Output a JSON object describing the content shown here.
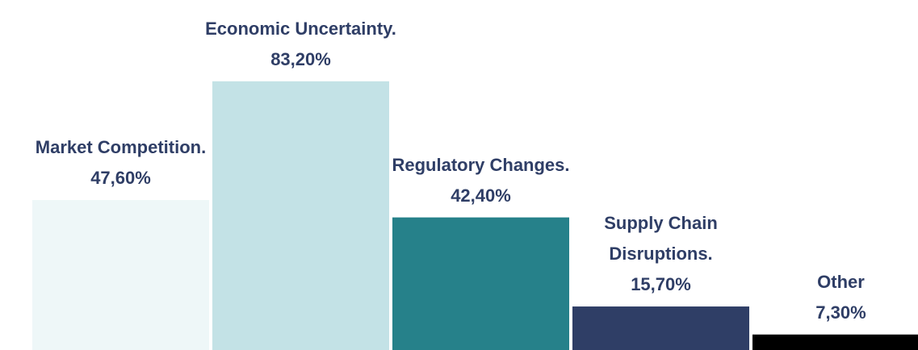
{
  "chart_data": {
    "type": "bar",
    "categories": [
      "Market Competition.",
      "Economic Uncertainty.",
      "Regulatory Changes.",
      "Supply Chain Disruptions.",
      "Other"
    ],
    "values": [
      47.6,
      83.2,
      42.4,
      15.7,
      7.3
    ],
    "value_labels": [
      "47,60%",
      "83,20%",
      "42,40%",
      "15,70%",
      "7,30%"
    ],
    "colors": [
      "#eef7f8",
      "#c3e2e6",
      "#26818a",
      "#2f3e66",
      "#000000"
    ]
  }
}
